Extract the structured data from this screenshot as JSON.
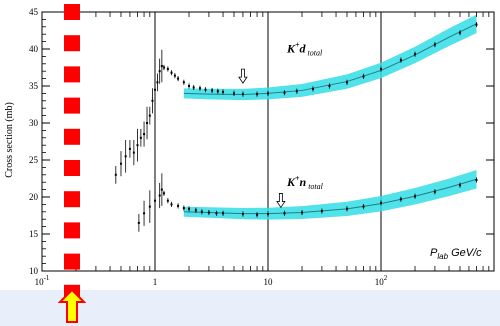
{
  "chart_data": {
    "type": "scatter",
    "xscale": "log",
    "xlim": [
      0.1,
      1000
    ],
    "ylim": [
      10,
      45
    ],
    "ylabel": "Cross section (mb)",
    "xlabel_prefix": "P",
    "xlabel_sub": "lab",
    "xlabel_units": " GeV/c",
    "x_ticks": [
      {
        "value": 0.1,
        "base": "10",
        "exp": "-1"
      },
      {
        "value": 1,
        "base": "1",
        "exp": ""
      },
      {
        "value": 10,
        "base": "10",
        "exp": ""
      },
      {
        "value": 100,
        "base": "10",
        "exp": "2"
      }
    ],
    "y_ticks": [
      10,
      15,
      20,
      25,
      30,
      35,
      40,
      45
    ],
    "series": [
      {
        "label_main": "K",
        "label_sup": "+",
        "label_rest": "d",
        "label_sub": "total",
        "label_at": {
          "x": 12,
          "y": 39.5
        },
        "arrow_at": {
          "x": 6,
          "y": 36.2
        },
        "data": [
          {
            "x": 0.45,
            "y": 23.0
          },
          {
            "x": 0.5,
            "y": 24.5
          },
          {
            "x": 0.55,
            "y": 25.5
          },
          {
            "x": 0.6,
            "y": 26.5
          },
          {
            "x": 0.65,
            "y": 26.0
          },
          {
            "x": 0.7,
            "y": 27.0
          },
          {
            "x": 0.75,
            "y": 28.0
          },
          {
            "x": 0.8,
            "y": 28.5
          },
          {
            "x": 0.85,
            "y": 30.0
          },
          {
            "x": 0.9,
            "y": 31.0
          },
          {
            "x": 0.95,
            "y": 33.0
          },
          {
            "x": 1.0,
            "y": 34.5
          },
          {
            "x": 1.05,
            "y": 35.5
          },
          {
            "x": 1.1,
            "y": 37.0
          },
          {
            "x": 1.15,
            "y": 37.7
          },
          {
            "x": 1.2,
            "y": 37.5
          },
          {
            "x": 1.3,
            "y": 37.3
          },
          {
            "x": 1.4,
            "y": 36.8
          },
          {
            "x": 1.5,
            "y": 36.4
          },
          {
            "x": 1.6,
            "y": 36.0
          },
          {
            "x": 1.8,
            "y": 35.5
          },
          {
            "x": 2.0,
            "y": 35.0
          },
          {
            "x": 2.2,
            "y": 34.8
          },
          {
            "x": 2.5,
            "y": 34.7
          },
          {
            "x": 2.8,
            "y": 34.5
          },
          {
            "x": 3.2,
            "y": 34.4
          },
          {
            "x": 3.6,
            "y": 34.3
          },
          {
            "x": 4.0,
            "y": 34.2
          },
          {
            "x": 5.0,
            "y": 34.0
          },
          {
            "x": 6.0,
            "y": 33.9
          },
          {
            "x": 8.0,
            "y": 33.9
          },
          {
            "x": 10.0,
            "y": 34.0
          },
          {
            "x": 14.0,
            "y": 34.1
          },
          {
            "x": 18.0,
            "y": 34.3
          },
          {
            "x": 25.0,
            "y": 34.6
          },
          {
            "x": 35.0,
            "y": 35.0
          },
          {
            "x": 50.0,
            "y": 35.5
          },
          {
            "x": 70.0,
            "y": 36.3
          },
          {
            "x": 100.0,
            "y": 37.3
          },
          {
            "x": 150.0,
            "y": 38.5
          },
          {
            "x": 200.0,
            "y": 39.3
          },
          {
            "x": 300.0,
            "y": 40.6
          },
          {
            "x": 500.0,
            "y": 42.2
          },
          {
            "x": 700.0,
            "y": 43.3
          }
        ],
        "fit": [
          {
            "x": 1.8,
            "y": 34.0
          },
          {
            "x": 3,
            "y": 33.9
          },
          {
            "x": 6,
            "y": 33.85
          },
          {
            "x": 10,
            "y": 34.0
          },
          {
            "x": 20,
            "y": 34.4
          },
          {
            "x": 50,
            "y": 35.6
          },
          {
            "x": 100,
            "y": 37.1
          },
          {
            "x": 200,
            "y": 39.2
          },
          {
            "x": 400,
            "y": 41.6
          },
          {
            "x": 700,
            "y": 43.4
          }
        ]
      },
      {
        "label_main": "K",
        "label_sup": "+",
        "label_rest": "n",
        "label_sub": "total",
        "label_at": {
          "x": 12,
          "y": 21.5
        },
        "arrow_at": {
          "x": 13,
          "y": 19.4
        },
        "data": [
          {
            "x": 0.72,
            "y": 16.5
          },
          {
            "x": 0.8,
            "y": 17.8
          },
          {
            "x": 0.9,
            "y": 18.7
          },
          {
            "x": 1.0,
            "y": 19.5
          },
          {
            "x": 1.1,
            "y": 20.2
          },
          {
            "x": 1.15,
            "y": 21.0
          },
          {
            "x": 1.2,
            "y": 20.5
          },
          {
            "x": 1.3,
            "y": 19.5
          },
          {
            "x": 1.4,
            "y": 19.0
          },
          {
            "x": 1.6,
            "y": 18.8
          },
          {
            "x": 1.8,
            "y": 18.5
          },
          {
            "x": 2.0,
            "y": 18.4
          },
          {
            "x": 2.3,
            "y": 18.2
          },
          {
            "x": 2.6,
            "y": 18.0
          },
          {
            "x": 3.0,
            "y": 17.9
          },
          {
            "x": 3.5,
            "y": 17.8
          },
          {
            "x": 4.0,
            "y": 17.8
          },
          {
            "x": 6.0,
            "y": 17.7
          },
          {
            "x": 8.0,
            "y": 17.6
          },
          {
            "x": 10.0,
            "y": 17.7
          },
          {
            "x": 14.0,
            "y": 17.8
          },
          {
            "x": 20.0,
            "y": 17.9
          },
          {
            "x": 30.0,
            "y": 18.1
          },
          {
            "x": 50.0,
            "y": 18.4
          },
          {
            "x": 70.0,
            "y": 18.7
          },
          {
            "x": 100.0,
            "y": 19.2
          },
          {
            "x": 150.0,
            "y": 19.7
          },
          {
            "x": 200.0,
            "y": 20.1
          },
          {
            "x": 300.0,
            "y": 20.7
          },
          {
            "x": 500.0,
            "y": 21.6
          },
          {
            "x": 700.0,
            "y": 22.3
          }
        ],
        "fit": [
          {
            "x": 1.8,
            "y": 18.0
          },
          {
            "x": 3,
            "y": 17.9
          },
          {
            "x": 6,
            "y": 17.75
          },
          {
            "x": 10,
            "y": 17.75
          },
          {
            "x": 20,
            "y": 17.9
          },
          {
            "x": 50,
            "y": 18.4
          },
          {
            "x": 100,
            "y": 19.1
          },
          {
            "x": 200,
            "y": 20.1
          },
          {
            "x": 400,
            "y": 21.3
          },
          {
            "x": 700,
            "y": 22.4
          }
        ]
      }
    ]
  },
  "colors": {
    "fit_band": "#33dde6",
    "fit_line": "#1b7f8a",
    "marker": "#000000",
    "red_bar": "#ff0000",
    "up_arrow_fill": "#ffff00",
    "up_arrow_stroke": "#ff0000"
  },
  "overlay": {
    "red_squares": 10,
    "up_arrow_icon": "up-arrow-icon"
  }
}
